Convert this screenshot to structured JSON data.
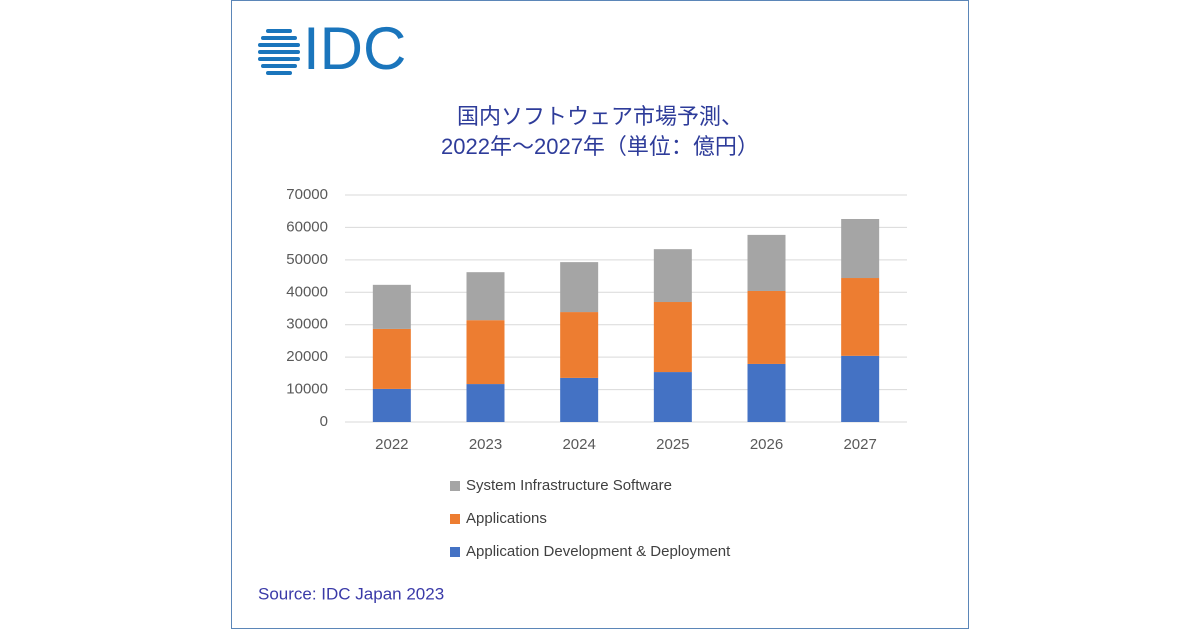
{
  "logo": "IDC",
  "chart_data": {
    "type": "stacked_bar",
    "title": [
      "国内ソフトウェア市場予測、",
      "2022年～2027年（単位：億円）"
    ],
    "categories": [
      "2022",
      "2023",
      "2024",
      "2025",
      "2026",
      "2027"
    ],
    "series": [
      {
        "name": "Application Development & Deployment",
        "color": "#4472c4",
        "values": [
          10200,
          11700,
          13600,
          15400,
          17900,
          20400
        ]
      },
      {
        "name": "Applications",
        "color": "#ed7d31",
        "values": [
          18500,
          19700,
          20300,
          21600,
          22500,
          24000
        ]
      },
      {
        "name": "System Infrastructure Software",
        "color": "#a5a5a5",
        "values": [
          13600,
          14800,
          15400,
          16300,
          17300,
          18200
        ]
      }
    ],
    "ylim": [
      0,
      70000
    ],
    "yticks": [
      0,
      10000,
      20000,
      30000,
      40000,
      50000,
      60000,
      70000
    ],
    "grid": true,
    "legend": "bottom",
    "source": "Source: IDC Japan 2023"
  }
}
